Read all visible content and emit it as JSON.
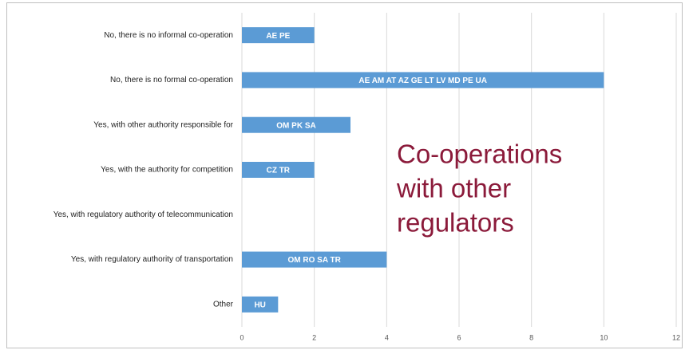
{
  "chart_data": {
    "type": "barh",
    "categories": [
      "No, there is no informal co-operation",
      "No, there is no formal co-operation",
      "Yes, with other authority responsible for",
      "Yes, with the authority for competition",
      "Yes, with regulatory authority of telecommunication",
      "Yes, with regulatory authority of transportation",
      "Other"
    ],
    "values": [
      2,
      10,
      3,
      2,
      0,
      4,
      1
    ],
    "bar_labels": [
      "AE  PE",
      "AE  AM  AT  AZ  GE  LT  LV  MD  PE  UA",
      "OM  PK  SA",
      "CZ  TR",
      null,
      "OM  RO  SA  TR",
      "HU"
    ],
    "color": "#5b9bd5",
    "xlim": [
      0,
      12
    ],
    "xticks": [
      0,
      2,
      4,
      6,
      8,
      10,
      12
    ],
    "grid": true,
    "annotation": [
      "Co-operations",
      "with other",
      "regulators"
    ]
  }
}
